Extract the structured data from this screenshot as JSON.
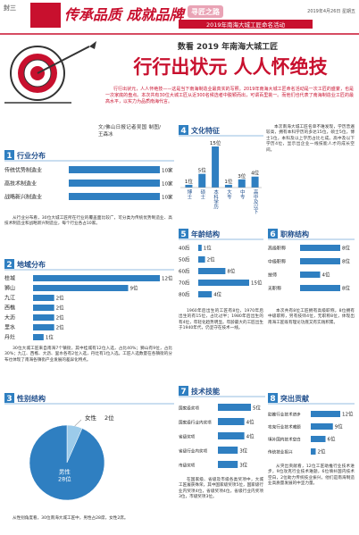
{
  "header": {
    "page_tag": "封三",
    "slogan": "传承品质 成就品牌",
    "banner_tag": "寻匠之路",
    "banner_text": "2019年南海大城工匠命名活动",
    "date": "2019年4月26日 星期五"
  },
  "subtitle": "数看 2019 年南海大城工匠",
  "headline": "行行出状元 人人怀绝技",
  "intro": "行行出状元，人人怀绝技——这是当下南海制造业最真实的写照。2019年南海大城工匠命名活动是一次工匠的盛宴，也是一次家底的盘点。本次共有30位大城工匠从近300名候选者中脱颖而出，可谓百里挑一。而他们也代表了南海制造业工匠的最高水平，以实力为品质南海代言。",
  "byline": "文/佛山日报记者吴国 制图/王森冰",
  "paragraphs": [
    "从行业分布看，30位大城工匠所在行业的覆盖面比较广，可分类为传统优势制造业、高技术制造业和战略新兴制造业，每个行业各占10家。",
    "30位大城工匠来自南海7个镇街，其中桂城有12位入选，占比40%；狮山有9位，占比30%；九江、西樵、大沥、里水各有2位入选，丹灶有1位入选。工匠人选数量在各镇街的分布也体现了南海各镇街产业发展的差异化特点。",
    "从性别角度看，30位南海大城工匠中，男性占28席，女性2席。",
    "本次南海大城工匠名单不难发现，学历普遍较高，拥有本科学历的多达15位，硕士5位，博士1位，本科及以上学历占比七成。高中及以下学历4位，显示出企业一线技能人才的成长空间。",
    "1960年后出生的工匠有8位，1970年后出生的有15位，占比过半；1980年后出生的有4位，年轻化趋势明显。年龄最大的工匠出生于1940年代，仍坚守在技术一线。",
    "本次共有8位工匠拥有高级职称，8位拥有中级职称，另有技师4位，无职称8位，体现出南海工匠既有理论功底又有实践积累。",
    "在国家级、省级及市级各类奖项中，大城工匠屡获殊荣，其中国家级奖项5位，国家级行业内奖项4位，省级奖项4位，省级行业内奖项3位，市级奖项3位。",
    "从突出贡献看，12位工匠助推行业技术进步，9位攻克行业技术难题，6位填补国内技术空白，2位助力传统技业振兴。他们是南海制造业高质量发展的中坚力量。"
  ],
  "sections": [
    {
      "number": "1",
      "title": "行业分布",
      "type": "hbar",
      "categories": [
        "传统优势制造业",
        "高技术制造业",
        "战略新兴制造业"
      ],
      "values": [
        10,
        10,
        10
      ],
      "value_labels": [
        "10家",
        "10家",
        "10家"
      ]
    },
    {
      "number": "2",
      "title": "地域分布",
      "type": "hbar",
      "categories": [
        "桂城",
        "狮山",
        "九江",
        "西樵",
        "大沥",
        "里水",
        "丹灶"
      ],
      "values": [
        12,
        9,
        2,
        2,
        2,
        2,
        1
      ],
      "value_labels": [
        "12位",
        "9位",
        "2位",
        "2位",
        "2位",
        "2位",
        "1位"
      ]
    },
    {
      "number": "3",
      "title": "性别结构",
      "type": "pie",
      "categories": [
        "女性",
        "男性"
      ],
      "values": [
        2,
        28
      ],
      "value_labels": [
        "2位",
        "28位"
      ]
    },
    {
      "number": "4",
      "title": "文化特征",
      "type": "vbar",
      "categories": [
        "博士",
        "硕士",
        "本科学历",
        "大专",
        "中专",
        "高中及以下"
      ],
      "values": [
        1,
        5,
        15,
        1,
        3,
        4
      ],
      "value_labels": [
        "1位",
        "5位",
        "15位",
        "1位",
        "3位",
        "4位"
      ]
    },
    {
      "number": "5",
      "title": "年龄结构",
      "type": "hbar",
      "categories": [
        "40后",
        "50后",
        "60后",
        "70后",
        "80后"
      ],
      "values": [
        1,
        2,
        8,
        15,
        4
      ],
      "value_labels": [
        "1位",
        "2位",
        "8位",
        "15位",
        "4位"
      ]
    },
    {
      "number": "6",
      "title": "职称结构",
      "type": "hbar",
      "categories": [
        "高级职称",
        "中级职称",
        "技师",
        "无职称"
      ],
      "values": [
        8,
        8,
        4,
        8
      ],
      "value_labels": [
        "8位",
        "8位",
        "4位",
        "8位"
      ]
    },
    {
      "number": "7",
      "title": "技术技能",
      "type": "hbar",
      "categories": [
        "国家级奖项",
        "国家级行业内奖项",
        "省级奖项",
        "省级行业内奖项",
        "市级奖项"
      ],
      "values": [
        5,
        4,
        4,
        3,
        3
      ],
      "value_labels": [
        "5位",
        "4位",
        "4位",
        "3位",
        "3位"
      ]
    },
    {
      "number": "8",
      "title": "突出贡献",
      "type": "hbar",
      "categories": [
        "助推行业技术进步",
        "攻克行业技术难题",
        "填补国内技术空白",
        "传统技业振兴"
      ],
      "values": [
        12,
        9,
        6,
        2
      ],
      "value_labels": [
        "12位",
        "9位",
        "6位",
        "2位"
      ]
    }
  ]
}
